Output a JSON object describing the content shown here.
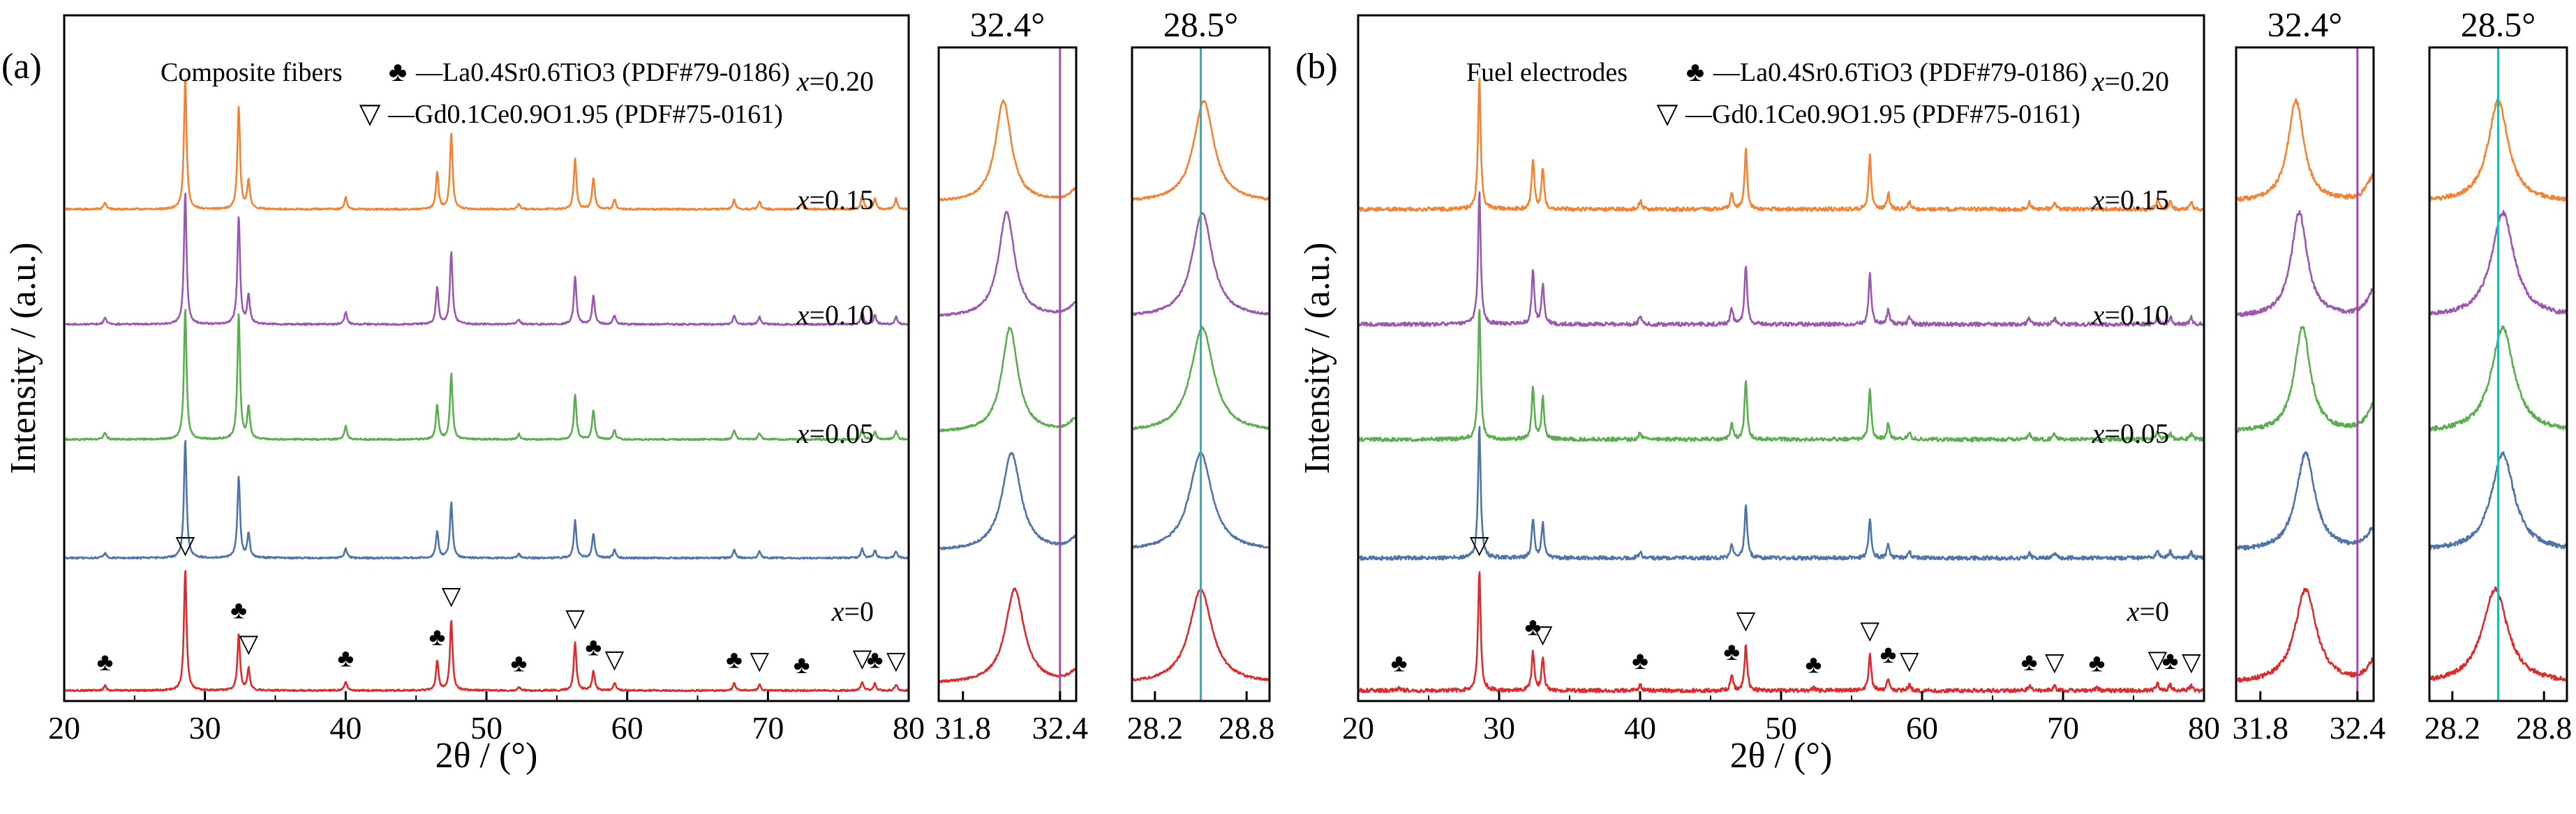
{
  "colors": {
    "x020": "#f58232",
    "x015": "#9a58b0",
    "x010": "#5aae4f",
    "x005": "#4f74aa",
    "x000": "#de2a2a",
    "marker_32_4": "#a24aa8",
    "marker_28_5": "#25b7b7"
  },
  "chart_data": [
    {
      "type": "line",
      "panel_label": "(a)",
      "title": "Composite fibers",
      "xlabel": "2θ / (°)",
      "ylabel": "Intensity / (a.u.)",
      "xlim": [
        20,
        80
      ],
      "xticks": [
        20,
        30,
        40,
        50,
        60,
        70,
        80
      ],
      "legend": [
        {
          "symbol": "♣",
          "text": "—La0.4Sr0.6TiO3 (PDF#79-0186)"
        },
        {
          "symbol": "▽",
          "text": "—Gd0.1Ce0.9O1.95 (PDF#75-0161)"
        }
      ],
      "series": [
        {
          "name": "x=0.20",
          "peaks": [
            [
              22.9,
              0.05
            ],
            [
              28.6,
              1.0
            ],
            [
              32.4,
              0.78
            ],
            [
              33.1,
              0.22
            ],
            [
              40.0,
              0.09
            ],
            [
              46.5,
              0.28
            ],
            [
              47.5,
              0.58
            ],
            [
              52.3,
              0.04
            ],
            [
              56.3,
              0.38
            ],
            [
              57.6,
              0.24
            ],
            [
              59.1,
              0.07
            ],
            [
              67.6,
              0.07
            ],
            [
              69.4,
              0.06
            ],
            [
              72.4,
              0.04
            ],
            [
              76.7,
              0.11
            ],
            [
              77.6,
              0.08
            ],
            [
              79.1,
              0.08
            ]
          ]
        },
        {
          "name": "x=0.15",
          "peaks": [
            [
              22.9,
              0.05
            ],
            [
              28.6,
              1.0
            ],
            [
              32.4,
              0.82
            ],
            [
              33.1,
              0.22
            ],
            [
              40.0,
              0.09
            ],
            [
              46.5,
              0.28
            ],
            [
              47.5,
              0.55
            ],
            [
              52.3,
              0.04
            ],
            [
              56.3,
              0.36
            ],
            [
              57.6,
              0.22
            ],
            [
              59.1,
              0.07
            ],
            [
              67.6,
              0.07
            ],
            [
              69.4,
              0.06
            ],
            [
              76.7,
              0.09
            ],
            [
              77.6,
              0.07
            ],
            [
              79.1,
              0.06
            ]
          ]
        },
        {
          "name": "x=0.10",
          "peaks": [
            [
              22.9,
              0.05
            ],
            [
              28.6,
              1.0
            ],
            [
              32.4,
              0.95
            ],
            [
              33.1,
              0.24
            ],
            [
              40.0,
              0.1
            ],
            [
              46.5,
              0.26
            ],
            [
              47.5,
              0.5
            ],
            [
              52.3,
              0.04
            ],
            [
              56.3,
              0.34
            ],
            [
              57.6,
              0.22
            ],
            [
              59.1,
              0.07
            ],
            [
              67.6,
              0.07
            ],
            [
              69.4,
              0.05
            ],
            [
              76.7,
              0.08
            ],
            [
              77.6,
              0.06
            ],
            [
              79.1,
              0.06
            ]
          ]
        },
        {
          "name": "x=0.05",
          "peaks": [
            [
              22.9,
              0.04
            ],
            [
              28.6,
              0.9
            ],
            [
              32.4,
              0.62
            ],
            [
              33.1,
              0.18
            ],
            [
              40.0,
              0.07
            ],
            [
              46.5,
              0.2
            ],
            [
              47.5,
              0.42
            ],
            [
              52.3,
              0.03
            ],
            [
              56.3,
              0.28
            ],
            [
              57.6,
              0.18
            ],
            [
              59.1,
              0.06
            ],
            [
              67.6,
              0.06
            ],
            [
              69.4,
              0.05
            ],
            [
              76.7,
              0.07
            ],
            [
              77.6,
              0.06
            ],
            [
              79.1,
              0.05
            ]
          ]
        },
        {
          "name": "x=0",
          "peaks": [
            [
              22.9,
              0.04
            ],
            [
              28.6,
              1.0
            ],
            [
              32.4,
              0.46
            ],
            [
              33.1,
              0.18
            ],
            [
              40.0,
              0.07
            ],
            [
              46.5,
              0.24
            ],
            [
              47.5,
              0.58
            ],
            [
              52.3,
              0.03
            ],
            [
              56.3,
              0.4
            ],
            [
              57.6,
              0.16
            ],
            [
              59.1,
              0.06
            ],
            [
              67.6,
              0.06
            ],
            [
              69.4,
              0.05
            ],
            [
              76.7,
              0.07
            ],
            [
              77.6,
              0.06
            ],
            [
              79.1,
              0.05
            ]
          ]
        }
      ],
      "phase_markers": [
        {
          "symbol": "♣",
          "x": [
            22.9,
            32.4,
            40.0,
            46.5,
            52.3,
            57.6,
            67.6,
            72.4,
            77.6
          ]
        },
        {
          "symbol": "▽",
          "x": [
            28.6,
            33.1,
            47.5,
            56.3,
            59.1,
            69.4,
            76.7,
            79.1
          ]
        }
      ]
    },
    {
      "type": "line",
      "panel_label": "",
      "title": "32.4°",
      "xlim": [
        31.65,
        32.5
      ],
      "xticks": [
        31.8,
        32.4
      ],
      "marker_line": 32.4,
      "series": [
        {
          "name": "x=0.20",
          "peaks": [
            [
              32.05,
              1.0,
              0.06
            ],
            [
              32.5,
              0.12,
              0.05
            ]
          ]
        },
        {
          "name": "x=0.15",
          "peaks": [
            [
              32.07,
              1.0,
              0.06
            ],
            [
              32.5,
              0.12,
              0.05
            ]
          ]
        },
        {
          "name": "x=0.10",
          "peaks": [
            [
              32.09,
              1.0,
              0.06
            ],
            [
              32.5,
              0.12,
              0.05
            ]
          ]
        },
        {
          "name": "x=0.05",
          "peaks": [
            [
              32.1,
              1.0,
              0.07
            ],
            [
              32.5,
              0.12,
              0.05
            ]
          ]
        },
        {
          "name": "x=0",
          "peaks": [
            [
              32.12,
              1.0,
              0.07
            ],
            [
              32.5,
              0.12,
              0.05
            ]
          ]
        }
      ]
    },
    {
      "type": "line",
      "panel_label": "",
      "title": "28.5°",
      "xlim": [
        28.05,
        28.95
      ],
      "xticks": [
        28.2,
        28.8
      ],
      "marker_line": 28.5,
      "series": [
        {
          "name": "x=0.20",
          "peaks": [
            [
              28.52,
              1.0,
              0.08
            ]
          ]
        },
        {
          "name": "x=0.15",
          "peaks": [
            [
              28.51,
              1.0,
              0.08
            ]
          ]
        },
        {
          "name": "x=0.10",
          "peaks": [
            [
              28.51,
              1.0,
              0.09
            ]
          ]
        },
        {
          "name": "x=0.05",
          "peaks": [
            [
              28.5,
              1.0,
              0.09
            ]
          ]
        },
        {
          "name": "x=0",
          "peaks": [
            [
              28.5,
              1.0,
              0.09
            ]
          ]
        }
      ]
    },
    {
      "type": "line",
      "panel_label": "(b)",
      "title": "Fuel electrodes",
      "xlabel": "2θ / (°)",
      "ylabel": "Intensity / (a.u.)",
      "xlim": [
        20,
        80
      ],
      "xticks": [
        20,
        30,
        40,
        50,
        60,
        70,
        80
      ],
      "legend": [
        {
          "symbol": "♣",
          "text": "—La0.4Sr0.6TiO3 (PDF#79-0186)"
        },
        {
          "symbol": "▽",
          "text": "—Gd0.1Ce0.9O1.95 (PDF#75-0161)"
        }
      ],
      "series": [
        {
          "name": "x=0.20",
          "peaks": [
            [
              28.6,
              1.0
            ],
            [
              32.4,
              0.38
            ],
            [
              33.1,
              0.3
            ],
            [
              40.0,
              0.07
            ],
            [
              46.5,
              0.12
            ],
            [
              47.5,
              0.45
            ],
            [
              56.3,
              0.4
            ],
            [
              57.6,
              0.12
            ],
            [
              59.1,
              0.06
            ],
            [
              67.6,
              0.05
            ],
            [
              69.4,
              0.05
            ],
            [
              76.7,
              0.08
            ],
            [
              77.6,
              0.06
            ],
            [
              79.1,
              0.05
            ]
          ]
        },
        {
          "name": "x=0.15",
          "peaks": [
            [
              28.6,
              1.0
            ],
            [
              32.4,
              0.4
            ],
            [
              33.1,
              0.3
            ],
            [
              40.0,
              0.07
            ],
            [
              46.5,
              0.12
            ],
            [
              47.5,
              0.45
            ],
            [
              56.3,
              0.38
            ],
            [
              57.6,
              0.12
            ],
            [
              59.1,
              0.06
            ],
            [
              67.6,
              0.05
            ],
            [
              69.4,
              0.05
            ],
            [
              76.7,
              0.07
            ],
            [
              77.6,
              0.06
            ],
            [
              79.1,
              0.05
            ]
          ]
        },
        {
          "name": "x=0.10",
          "peaks": [
            [
              28.6,
              1.0
            ],
            [
              32.4,
              0.4
            ],
            [
              33.1,
              0.32
            ],
            [
              40.0,
              0.06
            ],
            [
              46.5,
              0.12
            ],
            [
              47.5,
              0.45
            ],
            [
              56.3,
              0.38
            ],
            [
              57.6,
              0.12
            ],
            [
              59.1,
              0.06
            ],
            [
              67.6,
              0.05
            ],
            [
              69.4,
              0.05
            ],
            [
              76.7,
              0.06
            ],
            [
              77.6,
              0.05
            ],
            [
              79.1,
              0.05
            ]
          ]
        },
        {
          "name": "x=0.05",
          "peaks": [
            [
              28.6,
              1.0
            ],
            [
              32.4,
              0.3
            ],
            [
              33.1,
              0.26
            ],
            [
              40.0,
              0.05
            ],
            [
              46.5,
              0.1
            ],
            [
              47.5,
              0.4
            ],
            [
              56.3,
              0.3
            ],
            [
              57.6,
              0.1
            ],
            [
              59.1,
              0.05
            ],
            [
              67.6,
              0.04
            ],
            [
              69.4,
              0.04
            ],
            [
              76.7,
              0.06
            ],
            [
              77.6,
              0.05
            ],
            [
              79.1,
              0.04
            ]
          ]
        },
        {
          "name": "x=0",
          "peaks": [
            [
              22.9,
              0.03
            ],
            [
              28.6,
              1.0
            ],
            [
              32.4,
              0.32
            ],
            [
              33.1,
              0.26
            ],
            [
              40.0,
              0.05
            ],
            [
              46.5,
              0.12
            ],
            [
              47.5,
              0.38
            ],
            [
              52.3,
              0.02
            ],
            [
              56.3,
              0.3
            ],
            [
              57.6,
              0.1
            ],
            [
              59.1,
              0.05
            ],
            [
              67.6,
              0.04
            ],
            [
              69.4,
              0.04
            ],
            [
              72.4,
              0.03
            ],
            [
              76.7,
              0.06
            ],
            [
              77.6,
              0.05
            ],
            [
              79.1,
              0.04
            ]
          ]
        }
      ],
      "phase_markers": [
        {
          "symbol": "♣",
          "x": [
            22.9,
            32.4,
            40.0,
            46.5,
            52.3,
            57.6,
            67.6,
            72.4,
            77.6
          ]
        },
        {
          "symbol": "▽",
          "x": [
            28.6,
            33.1,
            47.5,
            56.3,
            59.1,
            69.4,
            76.7,
            79.1
          ]
        }
      ]
    },
    {
      "type": "line",
      "panel_label": "",
      "title": "32.4°",
      "xlim": [
        31.65,
        32.5
      ],
      "xticks": [
        31.8,
        32.4
      ],
      "marker_line": 32.4,
      "series": [
        {
          "name": "x=0.20",
          "peaks": [
            [
              32.02,
              1.0,
              0.06
            ],
            [
              32.5,
              0.25,
              0.05
            ]
          ]
        },
        {
          "name": "x=0.15",
          "peaks": [
            [
              32.04,
              1.0,
              0.06
            ],
            [
              32.5,
              0.25,
              0.05
            ]
          ]
        },
        {
          "name": "x=0.10",
          "peaks": [
            [
              32.06,
              1.0,
              0.06
            ],
            [
              32.5,
              0.25,
              0.05
            ]
          ]
        },
        {
          "name": "x=0.05",
          "peaks": [
            [
              32.08,
              1.0,
              0.07
            ],
            [
              32.5,
              0.22,
              0.05
            ]
          ]
        },
        {
          "name": "x=0",
          "peaks": [
            [
              32.08,
              1.0,
              0.08
            ],
            [
              32.5,
              0.22,
              0.05
            ]
          ]
        }
      ]
    },
    {
      "type": "line",
      "panel_label": "",
      "title": "28.5°",
      "xlim": [
        28.05,
        28.95
      ],
      "xticks": [
        28.2,
        28.8
      ],
      "marker_line": 28.5,
      "series": [
        {
          "name": "x=0.20",
          "peaks": [
            [
              28.5,
              1.0,
              0.08
            ]
          ]
        },
        {
          "name": "x=0.15",
          "peaks": [
            [
              28.53,
              1.0,
              0.09
            ]
          ]
        },
        {
          "name": "x=0.10",
          "peaks": [
            [
              28.53,
              1.0,
              0.09
            ]
          ]
        },
        {
          "name": "x=0.05",
          "peaks": [
            [
              28.53,
              1.0,
              0.09
            ]
          ]
        },
        {
          "name": "x=0",
          "peaks": [
            [
              28.48,
              1.0,
              0.1
            ]
          ]
        }
      ]
    }
  ]
}
